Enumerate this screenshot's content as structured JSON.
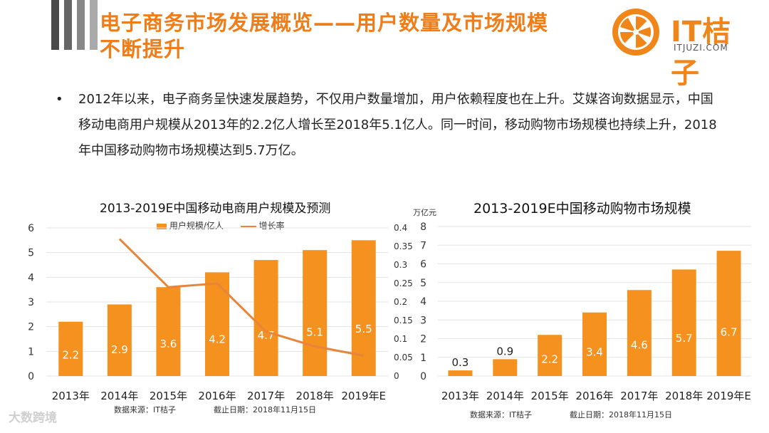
{
  "title": {
    "line1": "电子商务市场发展概览——用户数量及市场规模",
    "line2": "不断提升"
  },
  "logo": {
    "name": "IT桔子",
    "domain": "ITJUZI.COM"
  },
  "colors": {
    "orange": "#f5911e",
    "title_orange": "#ee7d1a",
    "line": "#e8853a"
  },
  "bullet": {
    "symbol": "•",
    "text": "2012年以来，电子商务呈快速发展趋势，不仅用户数量增加，用户依赖程度也在上升。艾媒咨询数据显示，中国移动电商用户规模从2013年的2.2亿人增长至2018年5.1亿人。同一时间，移动购物市场规模也持续上升，2018年中国移动购物市场规模达到5.7万亿。"
  },
  "chart_data": [
    {
      "type": "bar",
      "title": "2013-2019E中国移动电商用户规模及预测",
      "categories": [
        "2013年",
        "2014年",
        "2015年",
        "2016年",
        "2017年",
        "2018年",
        "2019年E"
      ],
      "series": [
        {
          "name": "用户规模/亿人",
          "type": "bar",
          "values": [
            2.2,
            2.9,
            3.6,
            4.2,
            4.7,
            5.1,
            5.5
          ],
          "labels": [
            "2.2",
            "2.9",
            "3.6",
            "4.2",
            "4.7",
            "5.1",
            "5.5"
          ]
        },
        {
          "name": "增长率",
          "type": "line",
          "axis": "right",
          "values": [
            null,
            0.37,
            0.24,
            0.25,
            0.12,
            0.08,
            0.055
          ]
        }
      ],
      "ylim": [
        0,
        6
      ],
      "yticks": [
        "0",
        "1",
        "2",
        "3",
        "4",
        "5",
        "6"
      ],
      "y2lim": [
        0,
        0.4
      ],
      "y2ticks": [
        "0",
        "0.05",
        "0.1",
        "0.15",
        "0.2",
        "0.25",
        "0.3",
        "0.35",
        "0.4"
      ],
      "source": "数据来源：IT桔子",
      "date": "截止日期：2018年11月15日"
    },
    {
      "type": "bar",
      "title": "2013-2019E中国移动购物市场规模",
      "unit": "万亿元",
      "categories": [
        "2013年",
        "2014年",
        "2015年",
        "2016年",
        "2017年",
        "2018年",
        "2019年E"
      ],
      "values": [
        0.3,
        0.9,
        2.2,
        3.4,
        4.6,
        5.7,
        6.7
      ],
      "labels": [
        "0.3",
        "0.9",
        "2.2",
        "3.4",
        "4.6",
        "5.7",
        "6.7"
      ],
      "ylim": [
        0,
        8
      ],
      "yticks": [
        "0",
        "1",
        "2",
        "3",
        "4",
        "5",
        "6",
        "7",
        "8"
      ],
      "source": "数据来源：IT桔子",
      "date": "截止日期：2018年11月15日"
    }
  ],
  "watermark": "大数跨境"
}
